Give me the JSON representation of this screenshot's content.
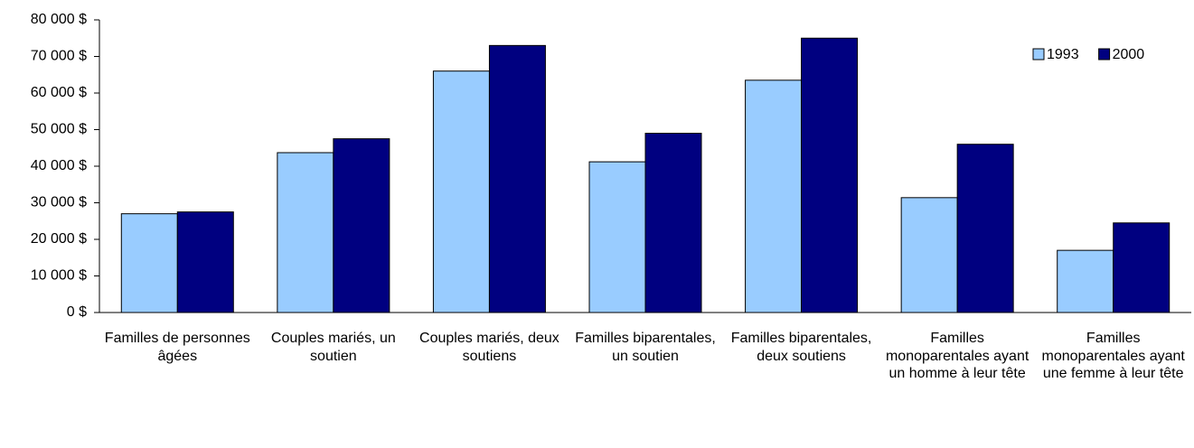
{
  "chart_data": {
    "type": "bar",
    "categories": [
      "Familles de personnes âgées",
      "Couples mariés, un soutien",
      "Couples mariés, deux soutiens",
      "Familles biparentales, un soutien",
      "Familles biparentales, deux soutiens",
      "Familles monoparentales ayant un homme à leur tête",
      "Familles monoparentales ayant une femme à leur tête"
    ],
    "series": [
      {
        "name": "1993",
        "color": "#99ccff",
        "values": [
          27000,
          43700,
          66000,
          41200,
          63500,
          31400,
          17000
        ]
      },
      {
        "name": "2000",
        "color": "#000080",
        "values": [
          27500,
          47500,
          73000,
          49000,
          75000,
          46000,
          24500
        ]
      }
    ],
    "ylim": [
      0,
      80000
    ],
    "yticks": [
      {
        "value": 0,
        "label": "0 $"
      },
      {
        "value": 10000,
        "label": "10 000 $"
      },
      {
        "value": 20000,
        "label": "20 000 $"
      },
      {
        "value": 30000,
        "label": "30 000 $"
      },
      {
        "value": 40000,
        "label": "40 000 $"
      },
      {
        "value": 50000,
        "label": "50 000 $"
      },
      {
        "value": 60000,
        "label": "60 000 $"
      },
      {
        "value": 70000,
        "label": "70 000 $"
      },
      {
        "value": 80000,
        "label": "80 000 $"
      }
    ],
    "grid": false,
    "legend": "top-right"
  }
}
